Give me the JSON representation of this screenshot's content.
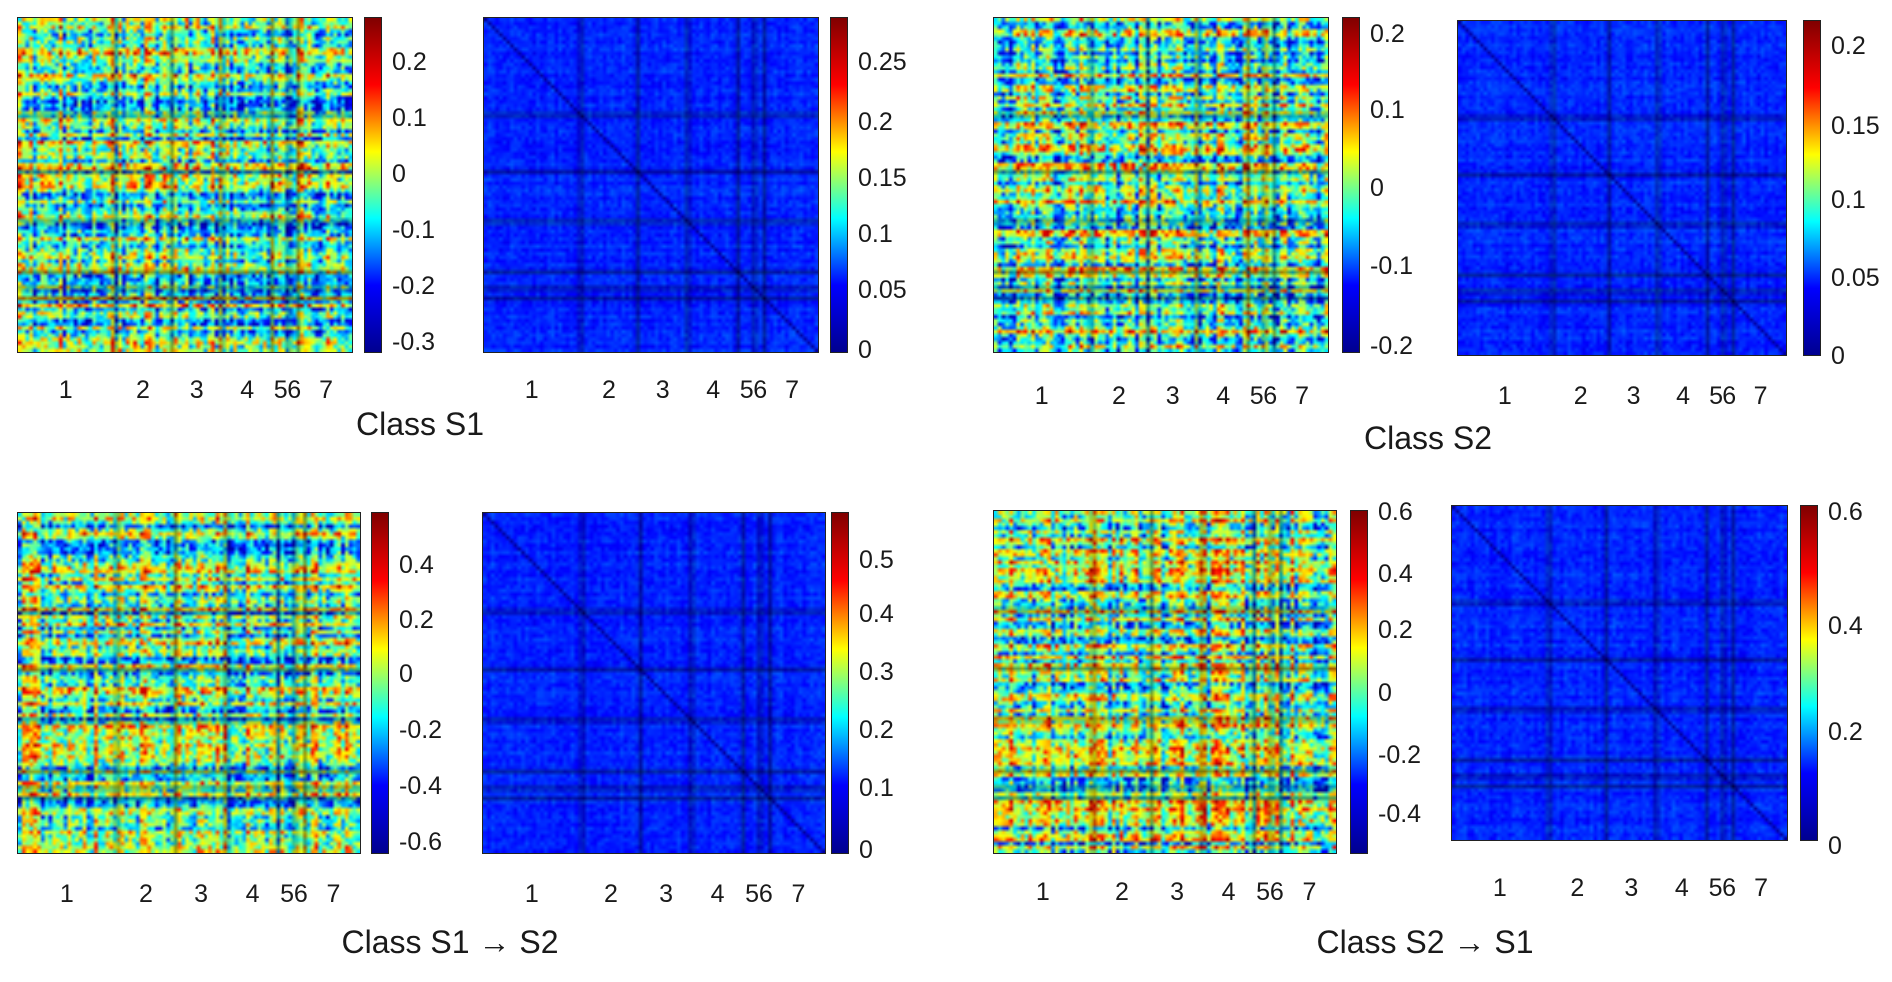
{
  "groups": [
    {
      "title": "Class S1",
      "chart_data": [
        {
          "type": "heatmap",
          "colormap": "jet",
          "clim": [
            -0.33,
            0.28
          ],
          "colorbar_ticks": [
            "0.2",
            "0.1",
            "0",
            "-0.1",
            "-0.2",
            "-0.3"
          ],
          "colorbar_tick_values": [
            0.2,
            0.1,
            0,
            -0.1,
            -0.2,
            -0.3
          ],
          "x_tick_labels": [
            "1",
            "2",
            "3",
            "4",
            "5",
            "6",
            "7"
          ],
          "block_boundaries": [
            0.29,
            0.46,
            0.61,
            0.76,
            0.81,
            0.84,
            1.0
          ]
        },
        {
          "type": "heatmap",
          "colormap": "jet",
          "clim": [
            0,
            0.29
          ],
          "colorbar_ticks": [
            "0.25",
            "0.2",
            "0.15",
            "0.1",
            "0.05",
            "0"
          ],
          "colorbar_tick_values": [
            0.25,
            0.2,
            0.15,
            0.1,
            0.05,
            0
          ],
          "x_tick_labels": [
            "1",
            "2",
            "3",
            "4",
            "5",
            "6",
            "7"
          ],
          "block_boundaries": [
            0.29,
            0.46,
            0.61,
            0.76,
            0.81,
            0.84,
            1.0
          ]
        }
      ]
    },
    {
      "title": "Class S2",
      "chart_data": [
        {
          "type": "heatmap",
          "colormap": "jet",
          "clim": [
            -0.21,
            0.22
          ],
          "colorbar_ticks": [
            "0.2",
            "0.1",
            "0",
            "-0.1",
            "-0.2"
          ],
          "colorbar_tick_values": [
            0.2,
            0.1,
            0,
            -0.1,
            -0.2
          ],
          "x_tick_labels": [
            "1",
            "2",
            "3",
            "4",
            "5",
            "6",
            "7"
          ],
          "block_boundaries": [
            0.29,
            0.46,
            0.61,
            0.76,
            0.81,
            0.84,
            1.0
          ]
        },
        {
          "type": "heatmap",
          "colormap": "jet",
          "clim": [
            0,
            0.22
          ],
          "colorbar_ticks": [
            "0.2",
            "0.15",
            "0.1",
            "0.05",
            "0"
          ],
          "colorbar_tick_values": [
            0.2,
            0.15,
            0.1,
            0.05,
            0
          ],
          "x_tick_labels": [
            "1",
            "2",
            "3",
            "4",
            "5",
            "6",
            "7"
          ],
          "block_boundaries": [
            0.29,
            0.46,
            0.61,
            0.76,
            0.81,
            0.84,
            1.0
          ]
        }
      ]
    },
    {
      "title": "Class S1 → S2",
      "chart_data": [
        {
          "type": "heatmap",
          "colormap": "jet",
          "clim": [
            -0.65,
            0.57
          ],
          "colorbar_ticks": [
            "0.4",
            "0.2",
            "0",
            "-0.2",
            "-0.4",
            "-0.6"
          ],
          "colorbar_tick_values": [
            0.4,
            0.2,
            0,
            -0.2,
            -0.4,
            -0.6
          ],
          "x_tick_labels": [
            "1",
            "2",
            "3",
            "4",
            "5",
            "6",
            "7"
          ],
          "block_boundaries": [
            0.29,
            0.46,
            0.61,
            0.76,
            0.81,
            0.84,
            1.0
          ]
        },
        {
          "type": "heatmap",
          "colormap": "jet",
          "clim": [
            0,
            0.57
          ],
          "colorbar_ticks": [
            "0.5",
            "0.4",
            "0.3",
            "0.2",
            "0.1",
            "0"
          ],
          "colorbar_tick_values": [
            0.5,
            0.4,
            0.3,
            0.2,
            0.1,
            0
          ],
          "x_tick_labels": [
            "1",
            "2",
            "3",
            "4",
            "5",
            "6",
            "7"
          ],
          "block_boundaries": [
            0.29,
            0.46,
            0.61,
            0.76,
            0.81,
            0.84,
            1.0
          ]
        }
      ]
    },
    {
      "title": "Class S2 → S1",
      "chart_data": [
        {
          "type": "heatmap",
          "colormap": "jet",
          "clim": [
            -0.52,
            0.62
          ],
          "colorbar_ticks": [
            "0.6",
            "0.4",
            "0.2",
            "0",
            "-0.2",
            "-0.4"
          ],
          "colorbar_tick_values": [
            0.6,
            0.4,
            0.2,
            0,
            -0.2,
            -0.4
          ],
          "x_tick_labels": [
            "1",
            "2",
            "3",
            "4",
            "5",
            "6",
            "7"
          ],
          "block_boundaries": [
            0.29,
            0.46,
            0.61,
            0.76,
            0.81,
            0.84,
            1.0
          ]
        },
        {
          "type": "heatmap",
          "colormap": "jet",
          "clim": [
            0,
            0.62
          ],
          "colorbar_ticks": [
            "0.6",
            "0.4",
            "0.2",
            "0"
          ],
          "colorbar_tick_values": [
            0.6,
            0.4,
            0.2,
            0
          ],
          "x_tick_labels": [
            "1",
            "2",
            "3",
            "4",
            "5",
            "6",
            "7"
          ],
          "block_boundaries": [
            0.29,
            0.46,
            0.61,
            0.76,
            0.81,
            0.84,
            1.0
          ]
        }
      ]
    }
  ]
}
